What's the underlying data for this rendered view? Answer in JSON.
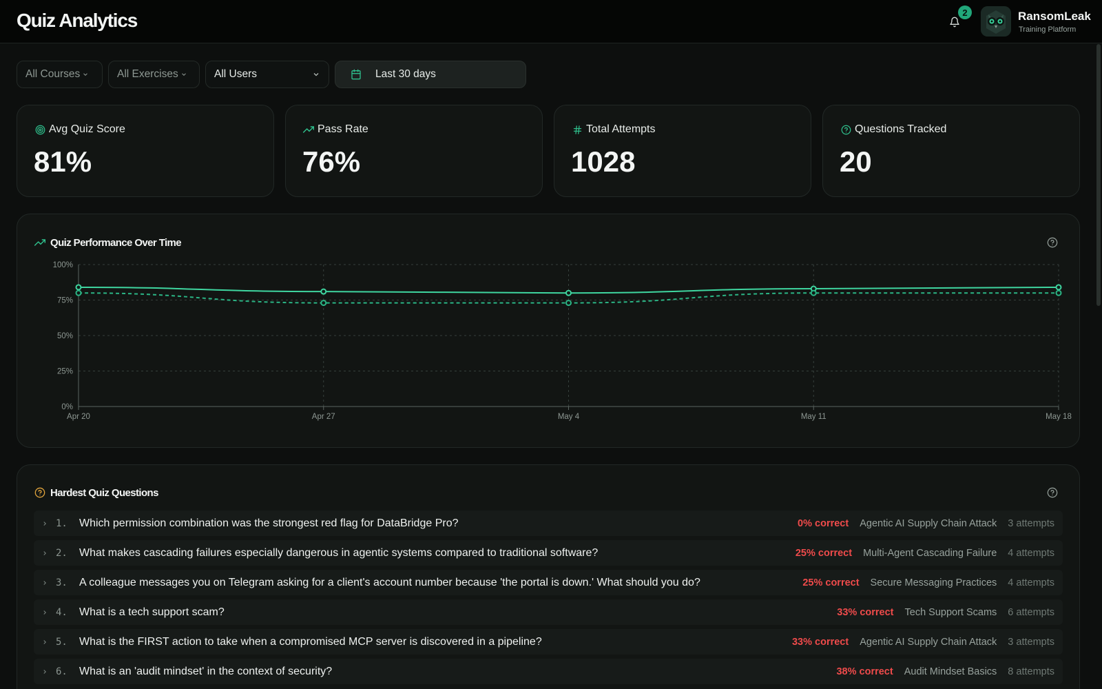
{
  "header": {
    "title": "Quiz Analytics",
    "notification_count": "2",
    "brand_name": "RansomLeak",
    "brand_subtitle": "Training Platform"
  },
  "filters": {
    "courses": "All Courses",
    "exercises": "All Exercises",
    "users": "All Users",
    "date_range": "Last 30 days"
  },
  "stats": [
    {
      "label": "Avg Quiz Score",
      "value": "81%",
      "icon": "target-icon"
    },
    {
      "label": "Pass Rate",
      "value": "76%",
      "icon": "trending-up-icon"
    },
    {
      "label": "Total Attempts",
      "value": "1028",
      "icon": "hash-icon"
    },
    {
      "label": "Questions Tracked",
      "value": "20",
      "icon": "help-circle-icon"
    }
  ],
  "performance": {
    "title": "Quiz Performance Over Time"
  },
  "chart_data": {
    "type": "line",
    "title": "Quiz Performance Over Time",
    "x": [
      "Apr 20",
      "Apr 27",
      "May 4",
      "May 11",
      "May 18"
    ],
    "y_ticks": [
      "0%",
      "25%",
      "50%",
      "75%",
      "100%"
    ],
    "ylim": [
      0,
      100
    ],
    "grid": true,
    "series": [
      {
        "values": [
          84,
          81,
          80,
          83,
          84
        ],
        "style": "solid",
        "color": "#3fd6a0"
      },
      {
        "values": [
          80,
          73,
          73,
          80,
          80
        ],
        "style": "dashed",
        "color": "#2bb585"
      }
    ]
  },
  "hardest": {
    "title": "Hardest Quiz Questions",
    "questions": [
      {
        "num": "1.",
        "text": "Which permission combination was the strongest red flag for DataBridge Pro?",
        "correct": "0% correct",
        "course": "Agentic AI Supply Chain Attack",
        "attempts": "3 attempts"
      },
      {
        "num": "2.",
        "text": "What makes cascading failures especially dangerous in agentic systems compared to traditional software?",
        "correct": "25% correct",
        "course": "Multi-Agent Cascading Failure",
        "attempts": "4 attempts"
      },
      {
        "num": "3.",
        "text": "A colleague messages you on Telegram asking for a client's account number because 'the portal is down.' What should you do?",
        "correct": "25% correct",
        "course": "Secure Messaging Practices",
        "attempts": "4 attempts"
      },
      {
        "num": "4.",
        "text": "What is a tech support scam?",
        "correct": "33% correct",
        "course": "Tech Support Scams",
        "attempts": "6 attempts"
      },
      {
        "num": "5.",
        "text": "What is the FIRST action to take when a compromised MCP server is discovered in a pipeline?",
        "correct": "33% correct",
        "course": "Agentic AI Supply Chain Attack",
        "attempts": "3 attempts"
      },
      {
        "num": "6.",
        "text": "What is an 'audit mindset' in the context of security?",
        "correct": "38% correct",
        "course": "Audit Mindset Basics",
        "attempts": "8 attempts"
      }
    ]
  }
}
